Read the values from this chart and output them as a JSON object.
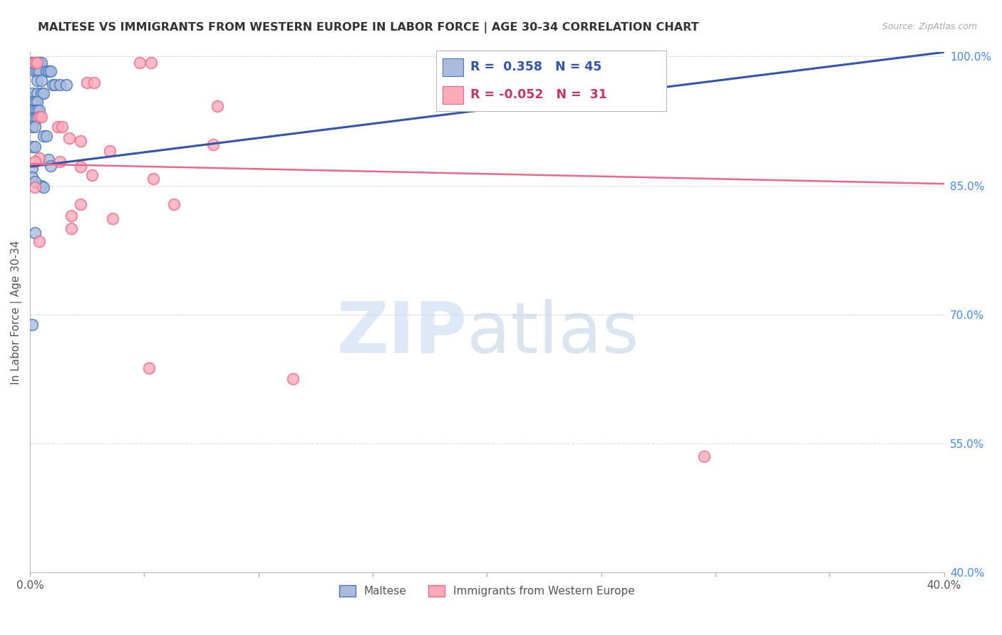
{
  "title": "MALTESE VS IMMIGRANTS FROM WESTERN EUROPE IN LABOR FORCE | AGE 30-34 CORRELATION CHART",
  "source": "Source: ZipAtlas.com",
  "ylabel": "In Labor Force | Age 30-34",
  "xlim": [
    0.0,
    0.4
  ],
  "ylim": [
    0.4,
    1.005
  ],
  "yticks_right": [
    1.0,
    0.85,
    0.7,
    0.55,
    0.4
  ],
  "ytick_labels_right": [
    "100.0%",
    "85.0%",
    "70.0%",
    "55.0%",
    "40.0%"
  ],
  "legend_blue_r": " 0.358",
  "legend_blue_n": "45",
  "legend_pink_r": "-0.052",
  "legend_pink_n": " 31",
  "blue_scatter": [
    [
      0.001,
      0.993
    ],
    [
      0.003,
      0.993
    ],
    [
      0.004,
      0.993
    ],
    [
      0.005,
      0.993
    ],
    [
      0.002,
      0.983
    ],
    [
      0.003,
      0.983
    ],
    [
      0.004,
      0.983
    ],
    [
      0.007,
      0.983
    ],
    [
      0.008,
      0.983
    ],
    [
      0.009,
      0.983
    ],
    [
      0.003,
      0.972
    ],
    [
      0.005,
      0.972
    ],
    [
      0.01,
      0.967
    ],
    [
      0.011,
      0.967
    ],
    [
      0.013,
      0.967
    ],
    [
      0.016,
      0.967
    ],
    [
      0.001,
      0.957
    ],
    [
      0.003,
      0.957
    ],
    [
      0.005,
      0.957
    ],
    [
      0.006,
      0.957
    ],
    [
      0.001,
      0.947
    ],
    [
      0.002,
      0.947
    ],
    [
      0.003,
      0.947
    ],
    [
      0.001,
      0.937
    ],
    [
      0.002,
      0.937
    ],
    [
      0.003,
      0.937
    ],
    [
      0.004,
      0.937
    ],
    [
      0.001,
      0.928
    ],
    [
      0.002,
      0.928
    ],
    [
      0.003,
      0.928
    ],
    [
      0.001,
      0.918
    ],
    [
      0.002,
      0.918
    ],
    [
      0.006,
      0.908
    ],
    [
      0.007,
      0.908
    ],
    [
      0.001,
      0.895
    ],
    [
      0.002,
      0.895
    ],
    [
      0.008,
      0.88
    ],
    [
      0.009,
      0.873
    ],
    [
      0.005,
      0.85
    ],
    [
      0.006,
      0.848
    ],
    [
      0.002,
      0.795
    ],
    [
      0.001,
      0.688
    ],
    [
      0.001,
      0.87
    ],
    [
      0.001,
      0.86
    ],
    [
      0.002,
      0.855
    ]
  ],
  "pink_scatter": [
    [
      0.002,
      0.993
    ],
    [
      0.003,
      0.993
    ],
    [
      0.048,
      0.993
    ],
    [
      0.053,
      0.993
    ],
    [
      0.025,
      0.97
    ],
    [
      0.028,
      0.97
    ],
    [
      0.082,
      0.942
    ],
    [
      0.004,
      0.93
    ],
    [
      0.005,
      0.93
    ],
    [
      0.012,
      0.918
    ],
    [
      0.014,
      0.918
    ],
    [
      0.017,
      0.905
    ],
    [
      0.022,
      0.902
    ],
    [
      0.08,
      0.898
    ],
    [
      0.035,
      0.89
    ],
    [
      0.004,
      0.882
    ],
    [
      0.002,
      0.878
    ],
    [
      0.013,
      0.878
    ],
    [
      0.022,
      0.872
    ],
    [
      0.027,
      0.862
    ],
    [
      0.054,
      0.858
    ],
    [
      0.002,
      0.848
    ],
    [
      0.022,
      0.828
    ],
    [
      0.063,
      0.828
    ],
    [
      0.018,
      0.815
    ],
    [
      0.036,
      0.812
    ],
    [
      0.018,
      0.8
    ],
    [
      0.004,
      0.785
    ],
    [
      0.052,
      0.638
    ],
    [
      0.115,
      0.625
    ],
    [
      0.295,
      0.535
    ]
  ],
  "blue_line": [
    [
      0.0,
      0.872
    ],
    [
      0.4,
      1.005
    ]
  ],
  "pink_line": [
    [
      0.0,
      0.875
    ],
    [
      0.4,
      0.852
    ]
  ],
  "blue_color": "#aabbdd",
  "pink_color": "#ffaabb",
  "blue_edge_color": "#4477bb",
  "pink_edge_color": "#ee6688",
  "blue_line_color": "#3355aa",
  "pink_line_color": "#ee6688",
  "background_color": "#ffffff",
  "grid_color": "#cccccc"
}
